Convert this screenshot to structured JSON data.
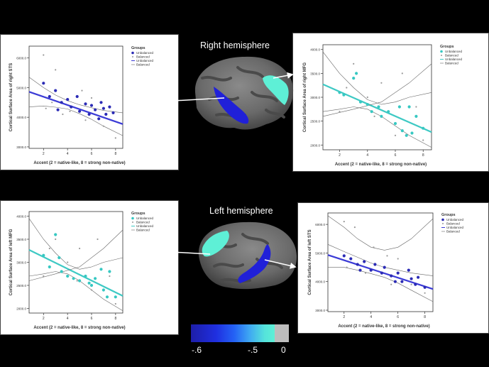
{
  "titles": {
    "right": "Right hemisphere",
    "left": "Left hemisphere"
  },
  "colorbar": {
    "labels": [
      "-.6",
      "-.5",
      "0"
    ]
  },
  "chart_data": [
    {
      "id": "tl",
      "type": "scatter",
      "ylabel": "Cortical Surface Area of right STS",
      "xlabel": "Accent (2 = native-like, 8 = strong non-native)",
      "xticks": [
        2,
        4,
        6,
        8
      ],
      "xlim": [
        0.8,
        8.6
      ],
      "yticks": [
        3000,
        4000,
        5000,
        6000
      ],
      "ytick_labels": [
        "3000.0",
        "4000.0",
        "5000.0",
        "6000.0"
      ],
      "ylim": [
        2950,
        6400
      ],
      "legend": {
        "title": "Groups",
        "entries": [
          "Unbalanced",
          "Balanced",
          "Unbalanced",
          "Balanced"
        ],
        "position": "top-right"
      },
      "fit_color": "#3b3bd6",
      "series": [
        {
          "name": "Unbalanced",
          "color": "#2b2bb5",
          "points": [
            [
              2,
              5150
            ],
            [
              2.5,
              4700
            ],
            [
              3,
              4900
            ],
            [
              3.5,
              4500
            ],
            [
              4,
              4600
            ],
            [
              4.3,
              4350
            ],
            [
              4.8,
              4700
            ],
            [
              5,
              4200
            ],
            [
              5.5,
              4450
            ],
            [
              6,
              4400
            ],
            [
              6.3,
              4250
            ],
            [
              6.8,
              4500
            ],
            [
              7,
              4300
            ],
            [
              7.2,
              4100
            ],
            [
              7.5,
              4350
            ],
            [
              3.2,
              4250
            ],
            [
              5.8,
              4100
            ],
            [
              6.6,
              3950
            ],
            [
              7.8,
              4150
            ]
          ]
        },
        {
          "name": "Balanced",
          "color": "#999999",
          "points": [
            [
              2,
              6100
            ],
            [
              2.2,
              4300
            ],
            [
              3,
              5600
            ],
            [
              3.6,
              4100
            ],
            [
              4.2,
              4200
            ],
            [
              5.2,
              4900
            ],
            [
              5.5,
              3900
            ],
            [
              6,
              4650
            ],
            [
              7,
              3700
            ],
            [
              8,
              3300
            ],
            [
              2.7,
              4500
            ]
          ]
        }
      ],
      "fits": [
        {
          "type": "fit",
          "x": [
            0.8,
            8.6
          ],
          "y": [
            4860,
            3770
          ]
        },
        {
          "type": "ci",
          "x": [
            0.8,
            2,
            3,
            4,
            5,
            6,
            7,
            8.6
          ],
          "y": [
            5350,
            5000,
            4750,
            4560,
            4420,
            4320,
            4230,
            4150
          ]
        },
        {
          "type": "ci",
          "x": [
            0.8,
            2,
            3,
            4,
            5,
            6,
            7,
            8.6
          ],
          "y": [
            4350,
            4380,
            4340,
            4280,
            4120,
            3930,
            3700,
            3380
          ]
        }
      ]
    },
    {
      "id": "tr",
      "type": "scatter",
      "ylabel": "Cortical Surface Area of right MFG",
      "xlabel": "Accent (2 = native-like, 8 = strong non-native)",
      "xticks": [
        2,
        4,
        6,
        8
      ],
      "xlim": [
        0.8,
        8.6
      ],
      "yticks": [
        2000,
        2500,
        3000,
        3500,
        4000
      ],
      "ytick_labels": [
        "2000.0",
        "2500.0",
        "3000.0",
        "3500.0",
        "4000.0"
      ],
      "ylim": [
        1900,
        4100
      ],
      "legend": {
        "title": "Groups",
        "entries": [
          "Unbalanced",
          "Balanced",
          "Unbalanced",
          "Balanced"
        ],
        "position": "top-right"
      },
      "fit_color": "#3ec9c4",
      "series": [
        {
          "name": "Unbalanced",
          "color": "#37c8c2",
          "points": [
            [
              2,
              3100
            ],
            [
              2.3,
              3050
            ],
            [
              3,
              3400
            ],
            [
              3.5,
              2900
            ],
            [
              4,
              2850
            ],
            [
              4.3,
              2700
            ],
            [
              4.8,
              2800
            ],
            [
              5,
              2600
            ],
            [
              5.5,
              2700
            ],
            [
              6,
              2450
            ],
            [
              6.3,
              2800
            ],
            [
              6.5,
              2300
            ],
            [
              7,
              2800
            ],
            [
              7.2,
              2250
            ],
            [
              7.5,
              2600
            ],
            [
              8,
              2350
            ],
            [
              3.2,
              3500
            ],
            [
              6.8,
              2200
            ]
          ]
        },
        {
          "name": "Balanced",
          "color": "#999999",
          "points": [
            [
              2,
              2700
            ],
            [
              2.5,
              3200
            ],
            [
              3,
              3700
            ],
            [
              4,
              3000
            ],
            [
              4.5,
              2600
            ],
            [
              5,
              3300
            ],
            [
              6,
              2200
            ],
            [
              6.5,
              3500
            ],
            [
              7.5,
              2800
            ],
            [
              8,
              2100
            ]
          ]
        }
      ],
      "fits": [
        {
          "type": "fit",
          "x": [
            0.8,
            8.6
          ],
          "y": [
            3270,
            2270
          ]
        },
        {
          "type": "ci",
          "x": [
            0.8,
            2,
            3,
            4,
            5,
            6,
            7,
            8.6
          ],
          "y": [
            3950,
            3500,
            3200,
            2950,
            2850,
            2900,
            3000,
            3100
          ]
        },
        {
          "type": "ci",
          "x": [
            0.8,
            2,
            3,
            4,
            5,
            6,
            7,
            8.6
          ],
          "y": [
            2700,
            2750,
            2800,
            2750,
            2600,
            2400,
            2200,
            1950
          ]
        },
        {
          "type": "ci",
          "x": [
            0.8,
            3,
            5,
            7,
            8.6
          ],
          "y": [
            2600,
            2750,
            2900,
            3300,
            3700
          ]
        }
      ]
    },
    {
      "id": "bl",
      "type": "scatter",
      "ylabel": "Cortical Surface Area of left MFG",
      "xlabel": "Accent (2 = native-like, 8 = strong non-native)",
      "xticks": [
        2,
        4,
        6,
        8
      ],
      "xlim": [
        0.8,
        8.6
      ],
      "yticks": [
        2000,
        2500,
        3000,
        3500,
        4000
      ],
      "ytick_labels": [
        "2000.0",
        "2500.0",
        "3000.0",
        "3500.0",
        "4000.0"
      ],
      "ylim": [
        1900,
        4100
      ],
      "legend": {
        "title": "Groups",
        "entries": [
          "Unbalanced",
          "Balanced",
          "Unbalanced",
          "Balanced"
        ],
        "position": "top-right"
      },
      "fit_color": "#3ec9c4",
      "series": [
        {
          "name": "Unbalanced",
          "color": "#37c8c2",
          "points": [
            [
              2,
              3150
            ],
            [
              2.5,
              2900
            ],
            [
              3,
              3600
            ],
            [
              3.5,
              2800
            ],
            [
              4,
              2700
            ],
            [
              4.5,
              2650
            ],
            [
              5,
              2600
            ],
            [
              5.5,
              2700
            ],
            [
              6,
              2500
            ],
            [
              6.3,
              2650
            ],
            [
              6.8,
              2850
            ],
            [
              7,
              2400
            ],
            [
              7.3,
              2250
            ],
            [
              7.5,
              2800
            ],
            [
              8,
              2250
            ],
            [
              3.3,
              3100
            ],
            [
              5.8,
              2550
            ]
          ]
        },
        {
          "name": "Balanced",
          "color": "#999999",
          "points": [
            [
              2,
              2700
            ],
            [
              2.5,
              3300
            ],
            [
              3,
              3500
            ],
            [
              4,
              3000
            ],
            [
              4.8,
              2600
            ],
            [
              5,
              3300
            ],
            [
              6,
              2400
            ],
            [
              6.5,
              3500
            ],
            [
              7.5,
              2700
            ],
            [
              8,
              2100
            ]
          ]
        }
      ],
      "fits": [
        {
          "type": "fit",
          "x": [
            0.8,
            8.6
          ],
          "y": [
            3270,
            2270
          ]
        },
        {
          "type": "ci",
          "x": [
            0.8,
            2,
            3,
            4,
            5,
            6,
            7,
            8.6
          ],
          "y": [
            3950,
            3500,
            3200,
            2950,
            2850,
            2900,
            3000,
            3100
          ]
        },
        {
          "type": "ci",
          "x": [
            0.8,
            2,
            3,
            4,
            5,
            6,
            7,
            8.6
          ],
          "y": [
            2700,
            2750,
            2800,
            2750,
            2600,
            2400,
            2200,
            1950
          ]
        },
        {
          "type": "ci",
          "x": [
            0.8,
            3,
            5,
            7,
            8.6
          ],
          "y": [
            2600,
            2750,
            2900,
            3300,
            3700
          ]
        }
      ]
    },
    {
      "id": "br",
      "type": "scatter",
      "ylabel": "Cortical Surface Area of left STS",
      "xlabel": "Accent (2 = native-like, 8 = strong non-native)",
      "xticks": [
        2,
        4,
        6,
        8
      ],
      "xlim": [
        0.8,
        8.6
      ],
      "yticks": [
        3000,
        4000,
        5000,
        6000
      ],
      "ytick_labels": [
        "3000.0",
        "4000.0",
        "5000.0",
        "6000.0"
      ],
      "ylim": [
        2950,
        6400
      ],
      "legend": {
        "title": "Groups",
        "entries": [
          "Unbalanced",
          "Balanced",
          "Unbalanced",
          "Balanced"
        ],
        "position": "top-right"
      },
      "fit_color": "#3b3bd6",
      "series": [
        {
          "name": "Unbalanced",
          "color": "#2b2bb5",
          "points": [
            [
              2,
              4900
            ],
            [
              2.5,
              4800
            ],
            [
              3,
              4600
            ],
            [
              3.5,
              4700
            ],
            [
              4,
              4400
            ],
            [
              4.3,
              4600
            ],
            [
              4.8,
              4300
            ],
            [
              5,
              4500
            ],
            [
              5.5,
              4200
            ],
            [
              6,
              4300
            ],
            [
              6.3,
              4000
            ],
            [
              6.8,
              4400
            ],
            [
              7,
              4100
            ],
            [
              7.3,
              3900
            ],
            [
              7.5,
              4150
            ],
            [
              8,
              3800
            ],
            [
              3.2,
              4400
            ],
            [
              5.8,
              4000
            ]
          ]
        },
        {
          "name": "Balanced",
          "color": "#999999",
          "points": [
            [
              2,
              6100
            ],
            [
              2.2,
              4500
            ],
            [
              2.8,
              5900
            ],
            [
              3.6,
              4300
            ],
            [
              4.2,
              5200
            ],
            [
              5.2,
              4900
            ],
            [
              5.5,
              3900
            ],
            [
              6,
              4800
            ],
            [
              7,
              3900
            ],
            [
              8,
              3600
            ]
          ]
        }
      ],
      "fits": [
        {
          "type": "fit",
          "x": [
            0.8,
            8.6
          ],
          "y": [
            4930,
            3740
          ]
        },
        {
          "type": "ci",
          "x": [
            0.8,
            2,
            3,
            4,
            5,
            6,
            7,
            8.6
          ],
          "y": [
            5300,
            5050,
            4850,
            4650,
            4500,
            4400,
            4300,
            4200
          ]
        },
        {
          "type": "ci",
          "x": [
            0.8,
            2,
            3,
            4,
            5,
            6,
            7,
            8.6
          ],
          "y": [
            4500,
            4500,
            4400,
            4280,
            4150,
            3950,
            3700,
            3300
          ]
        },
        {
          "type": "ci",
          "x": [
            0.8,
            2,
            3,
            4,
            5,
            6,
            7,
            8.6
          ],
          "y": [
            6300,
            5900,
            5500,
            5200,
            5100,
            5200,
            5500,
            6200
          ]
        }
      ]
    }
  ]
}
